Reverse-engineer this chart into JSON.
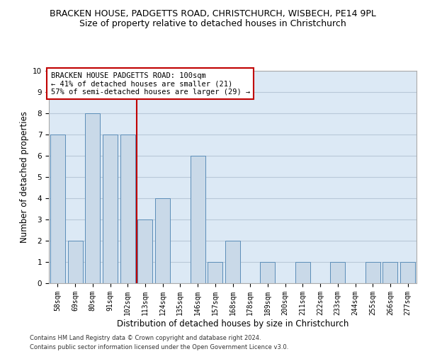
{
  "title_line1": "BRACKEN HOUSE, PADGETTS ROAD, CHRISTCHURCH, WISBECH, PE14 9PL",
  "title_line2": "Size of property relative to detached houses in Christchurch",
  "xlabel": "Distribution of detached houses by size in Christchurch",
  "ylabel": "Number of detached properties",
  "categories": [
    "58sqm",
    "69sqm",
    "80sqm",
    "91sqm",
    "102sqm",
    "113sqm",
    "124sqm",
    "135sqm",
    "146sqm",
    "157sqm",
    "168sqm",
    "178sqm",
    "189sqm",
    "200sqm",
    "211sqm",
    "222sqm",
    "233sqm",
    "244sqm",
    "255sqm",
    "266sqm",
    "277sqm"
  ],
  "values": [
    7,
    2,
    8,
    7,
    7,
    3,
    4,
    0,
    6,
    1,
    2,
    0,
    1,
    0,
    1,
    0,
    1,
    0,
    1,
    1,
    1
  ],
  "bar_color": "#c9d9e8",
  "bar_edge_color": "#5b8db8",
  "highlight_index": 4,
  "highlight_line_color": "#c00000",
  "annotation_text": "BRACKEN HOUSE PADGETTS ROAD: 100sqm\n← 41% of detached houses are smaller (21)\n57% of semi-detached houses are larger (29) →",
  "annotation_box_color": "#ffffff",
  "annotation_box_edge": "#c00000",
  "ylim": [
    0,
    10
  ],
  "yticks": [
    0,
    1,
    2,
    3,
    4,
    5,
    6,
    7,
    8,
    9,
    10
  ],
  "grid_color": "#b8c8d8",
  "bg_color": "#dce9f5",
  "footer1": "Contains HM Land Registry data © Crown copyright and database right 2024.",
  "footer2": "Contains public sector information licensed under the Open Government Licence v3.0.",
  "title_fontsize": 9,
  "subtitle_fontsize": 9,
  "axis_label_fontsize": 8.5,
  "tick_fontsize": 7,
  "annotation_fontsize": 7.5,
  "footer_fontsize": 6
}
